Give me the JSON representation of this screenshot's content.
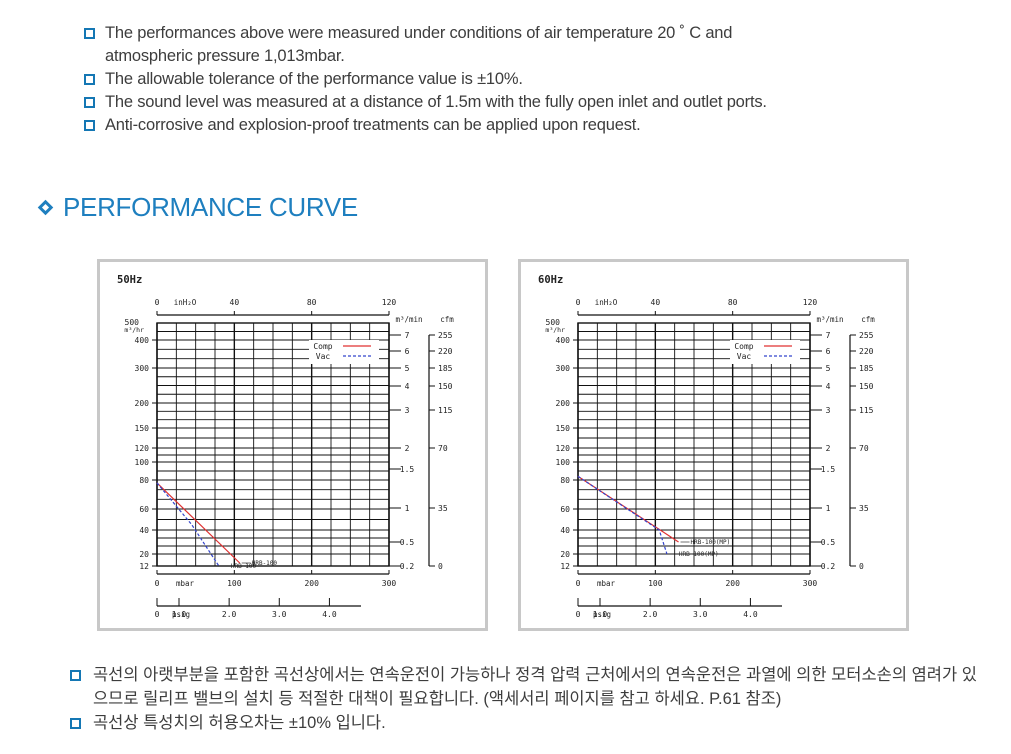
{
  "notes": [
    "The performances above were measured under conditions of air temperature 20 ˚ C and atmospheric pressure 1,013mbar.",
    "The allowable tolerance of the performance value is ±10%.",
    "The sound level was measured at a distance of 1.5m with the fully open inlet and outlet ports.",
    "Anti-corrosive and explosion-proof treatments can be applied upon request."
  ],
  "section_heading": "PERFORMANCE CURVE",
  "charts": [
    {
      "frequency": "50Hz",
      "model_labels": [
        "HRB-100",
        "HRB-100"
      ],
      "legend": [
        "Comp",
        "Vac"
      ]
    },
    {
      "frequency": "60Hz",
      "model_labels": [
        "HRB-100(MP)",
        "HRB-100(MP)"
      ],
      "legend": [
        "Comp",
        "Vac"
      ]
    }
  ],
  "chart_data": [
    {
      "type": "line",
      "title": "50Hz",
      "top_axis": {
        "unit": "inH₂O",
        "ticks": [
          "0",
          "40",
          "80",
          "120"
        ],
        "range": [
          0,
          120
        ]
      },
      "left_axis": {
        "unit": "m³/hr",
        "ticks": [
          "500",
          "400",
          "300",
          "200",
          "150",
          "120",
          "100",
          "80",
          "60",
          "40",
          "20",
          "12"
        ]
      },
      "right_axis_1": {
        "unit": "m³/min",
        "ticks": [
          "7",
          "6",
          "5",
          "4",
          "3",
          "2",
          "1.5",
          "1",
          "0.5",
          "0.2"
        ]
      },
      "right_axis_2": {
        "unit": "cfm",
        "ticks": [
          "255",
          "220",
          "185",
          "150",
          "115",
          "70",
          "35",
          "0"
        ]
      },
      "bottom_axis_1": {
        "unit": "mbar",
        "ticks": [
          "0",
          "100",
          "200",
          "300"
        ],
        "range": [
          0,
          300
        ]
      },
      "bottom_axis_2": {
        "unit": "psig",
        "ticks": [
          "0",
          "1.0",
          "2.0",
          "3.0",
          "4.0"
        ]
      },
      "legend": [
        "Comp",
        "Vac"
      ],
      "series": [
        {
          "name": "Comp",
          "x": [
            0,
            107
          ],
          "y": [
            78,
            14
          ]
        },
        {
          "name": "Vac",
          "x": [
            0,
            45,
            80
          ],
          "y": [
            78,
            45,
            12
          ]
        }
      ]
    },
    {
      "type": "line",
      "title": "60Hz",
      "top_axis": {
        "unit": "inH₂O",
        "ticks": [
          "0",
          "40",
          "80",
          "120"
        ],
        "range": [
          0,
          120
        ]
      },
      "left_axis": {
        "unit": "m³/hr",
        "ticks": [
          "500",
          "400",
          "300",
          "200",
          "150",
          "120",
          "100",
          "80",
          "60",
          "40",
          "20",
          "12"
        ]
      },
      "right_axis_1": {
        "unit": "m³/min",
        "ticks": [
          "7",
          "6",
          "5",
          "4",
          "3",
          "2",
          "1.5",
          "1",
          "0.5",
          "0.2"
        ]
      },
      "right_axis_2": {
        "unit": "cfm",
        "ticks": [
          "255",
          "220",
          "185",
          "150",
          "115",
          "70",
          "35",
          "0"
        ]
      },
      "bottom_axis_1": {
        "unit": "mbar",
        "ticks": [
          "0",
          "100",
          "200",
          "300"
        ],
        "range": [
          0,
          300
        ]
      },
      "bottom_axis_2": {
        "unit": "psig",
        "ticks": [
          "0",
          "1.0",
          "2.0",
          "3.0",
          "4.0"
        ]
      },
      "legend": [
        "Comp",
        "Vac"
      ],
      "series": [
        {
          "name": "Comp",
          "x": [
            0,
            130
          ],
          "y": [
            84,
            30
          ]
        },
        {
          "name": "Vac",
          "x": [
            0,
            105,
            115
          ],
          "y": [
            84,
            40,
            20
          ]
        }
      ]
    }
  ],
  "korean_notes": [
    "곡선의 아랫부분을 포함한 곡선상에서는 연속운전이 가능하나 정격 압력 근처에서의 연속운전은 과열에 의한 모터소손의 염려가 있으므로 릴리프 밸브의 설치 등 적절한 대책이 필요합니다. (액세서리 페이지를 참고 하세요. P.61 참조)",
    "곡선상 특성치의 허용오차는 ±10% 입니다."
  ]
}
